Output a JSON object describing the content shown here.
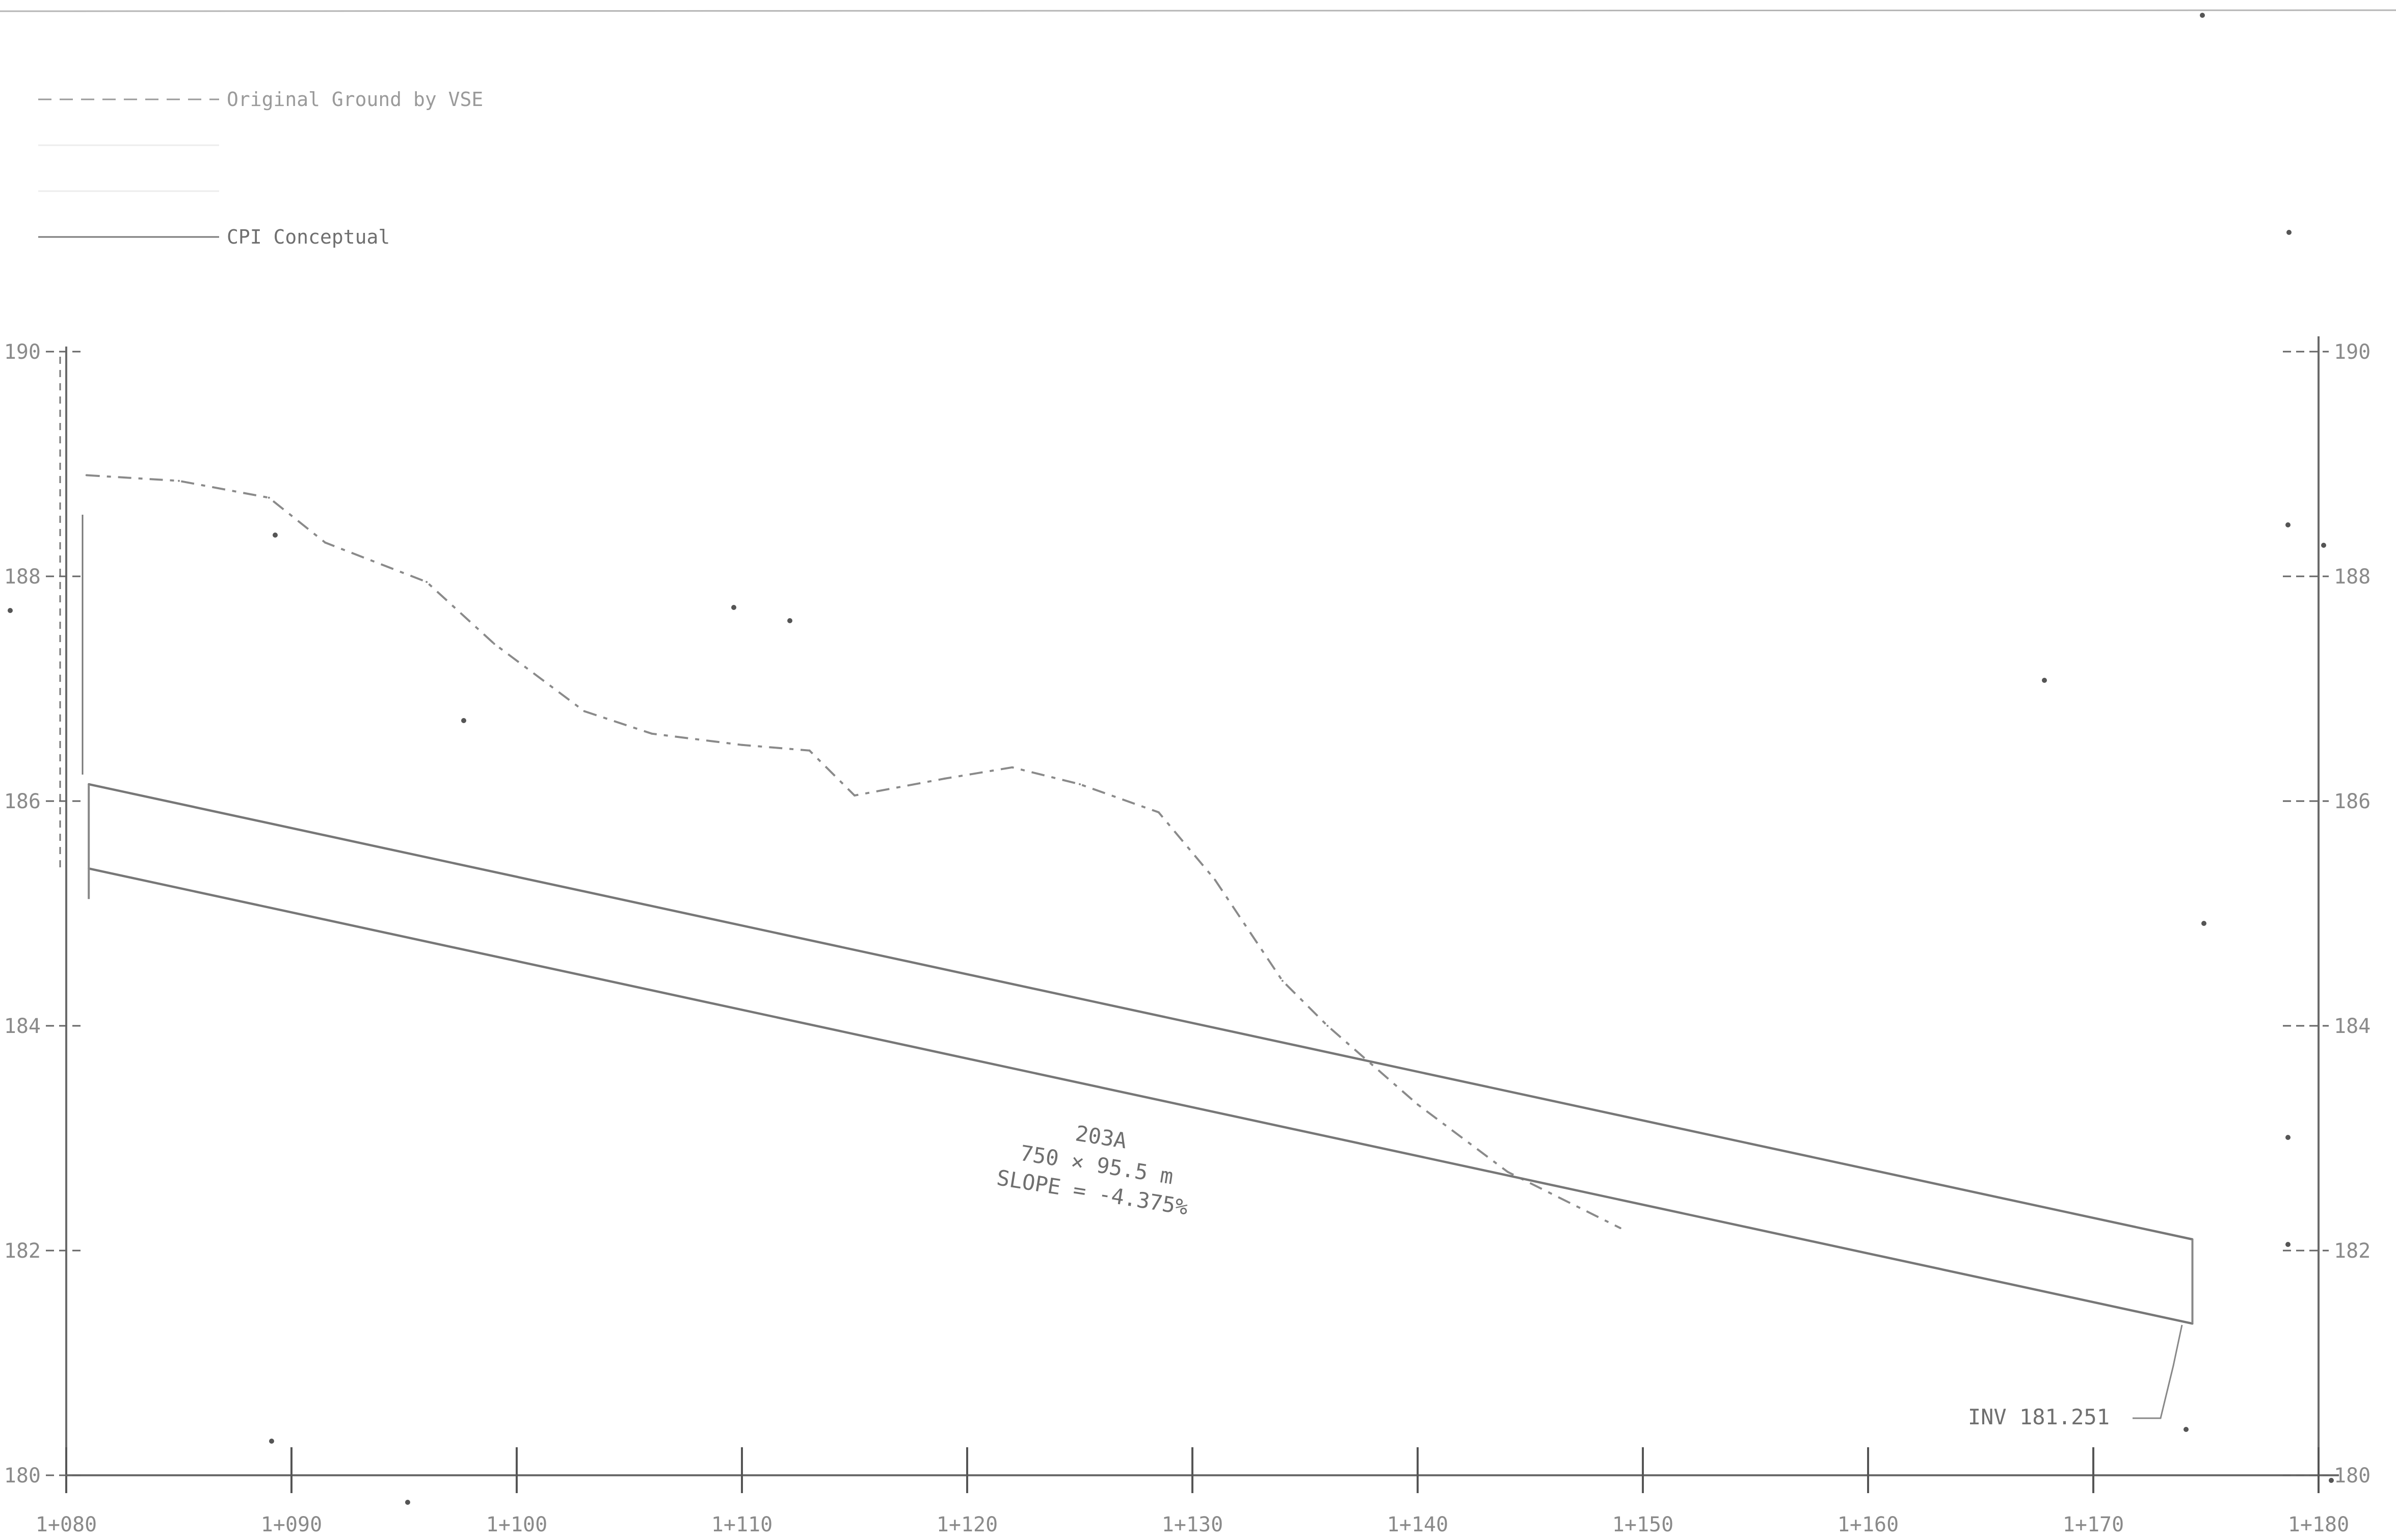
{
  "chart_data": {
    "type": "line",
    "title": "",
    "xlabel": "",
    "ylabel": "",
    "xlim": [
      1080,
      1180
    ],
    "ylim": [
      180,
      190
    ],
    "x_tick_labels": [
      "1+080",
      "1+090",
      "1+100",
      "1+110",
      "1+120",
      "1+130",
      "1+140",
      "1+150",
      "1+160",
      "1+170",
      "1+180"
    ],
    "y_tick_labels": [
      "180",
      "182",
      "184",
      "186",
      "188",
      "190"
    ],
    "legend": {
      "placement": "top-left",
      "entries": [
        {
          "label": "Original Ground by VSE",
          "style": "dashed",
          "color": "#9a9a9a"
        },
        {
          "label": "",
          "style": "faint",
          "color": "#ececec"
        },
        {
          "label": "",
          "style": "faint",
          "color": "#ececec"
        },
        {
          "label": "CPI Conceptual",
          "style": "solid",
          "color": "#7a7a7a"
        }
      ]
    },
    "series": [
      {
        "name": "Original Ground by VSE",
        "style": "dashed",
        "x": [
          1080.9,
          1085,
          1089,
          1091.5,
          1096,
          1099,
          1103,
          1106,
          1110,
          1113,
          1115,
          1119,
          1122,
          1125,
          1128.5,
          1131,
          1134,
          1136,
          1140,
          1144,
          1149
        ],
        "y": [
          188.9,
          188.85,
          188.7,
          188.3,
          187.95,
          187.4,
          186.8,
          186.6,
          186.5,
          186.45,
          186.05,
          186.2,
          186.3,
          186.15,
          185.9,
          185.3,
          184.4,
          184.0,
          183.3,
          182.7,
          182.2
        ]
      },
      {
        "name": "",
        "style": "solid",
        "x": [
          1081.0,
          1174.4
        ],
        "y": [
          186.15,
          182.1
        ]
      },
      {
        "name": "",
        "style": "solid",
        "x": [
          1081.0,
          1174.4
        ],
        "y": [
          185.4,
          181.35
        ]
      }
    ],
    "annotations": {
      "pipe_id": "203A",
      "pipe_size": "750 × 95.5 m",
      "slope": "SLOPE = -4.375%",
      "invert": "INV 181.251"
    }
  }
}
